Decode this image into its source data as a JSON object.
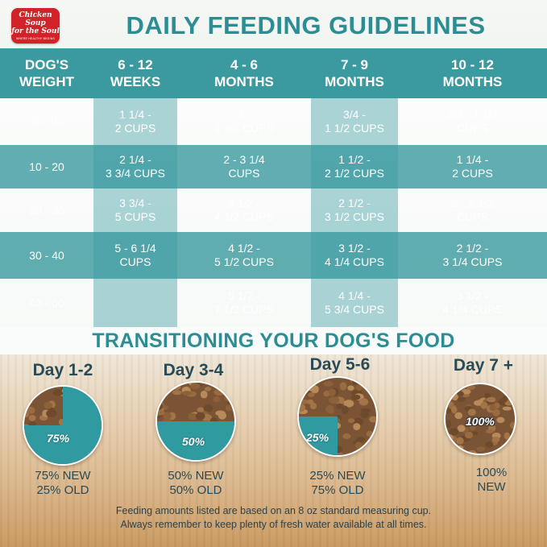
{
  "brand": {
    "logo_line1": "Chicken Soup",
    "logo_line2": "for the Soul",
    "logo_sub": "WHERE HEALTHY BEGINS",
    "color": "#d2232a"
  },
  "title": "DAILY FEEDING GUIDELINES",
  "colors": {
    "accent": "#2b8e94",
    "band_teal": "#3a9aa0",
    "text_dark": "#2a4b55"
  },
  "table": {
    "headers": [
      "DOG'S\nWEIGHT",
      "6 - 12\nWEEKS",
      "4 - 6\nMONTHS",
      "7 - 9\nMONTHS",
      "10 - 12\nMONTHS"
    ],
    "rows": [
      [
        "5 - 10",
        "1 1/4 -\n2 CUPS",
        "1 -\n1 3/4 CUPS",
        "3/4 -\n1 1/2 CUPS",
        "2/3 - 1 1/4\nCUPS"
      ],
      [
        "10 - 20",
        "2 1/4 -\n3 3/4 CUPS",
        "2 - 3 1/4\nCUPS",
        "1 1/2 -\n2 1/2 CUPS",
        "1 1/4 -\n2 CUPS"
      ],
      [
        "20 - 30",
        "3 3/4 -\n5 CUPS",
        "3 1/2 -\n4 1/2 CUPS",
        "2 1/2 -\n3 1/2 CUPS",
        "2 - 2 1/2\nCUPS"
      ],
      [
        "30 - 40",
        "5 - 6 1/4\nCUPS",
        "4 1/2 -\n5 1/2 CUPS",
        "3 1/2 -\n4 1/4 CUPS",
        "2 1/2 -\n3 1/4 CUPS"
      ],
      [
        "40 - 60",
        "",
        "5 1/2 -\n7 1/2 CUPS",
        "4 1/4 -\n5 3/4 CUPS",
        "3 1/2 -\n4 1/4 CUPS"
      ]
    ]
  },
  "transition": {
    "title": "TRANSITIONING YOUR DOG'S FOOD",
    "days": [
      {
        "label": "Day 1-2",
        "new_pct": 75,
        "pct_label": "75%",
        "caption": "75% NEW\n25% OLD"
      },
      {
        "label": "Day 3-4",
        "new_pct": 50,
        "pct_label": "50%",
        "caption": "50% NEW\n50% OLD"
      },
      {
        "label": "Day 5-6",
        "new_pct": 25,
        "pct_label": "25%",
        "caption": "25% NEW\n75% OLD"
      },
      {
        "label": "Day 7 +",
        "new_pct": 100,
        "pct_label": "100%",
        "caption": "100%\nNEW"
      }
    ]
  },
  "footnote": {
    "line1": "Feeding amounts listed are based on an 8 oz standard measuring cup.",
    "line2": "Always remember to keep plenty of fresh water available at all times."
  }
}
